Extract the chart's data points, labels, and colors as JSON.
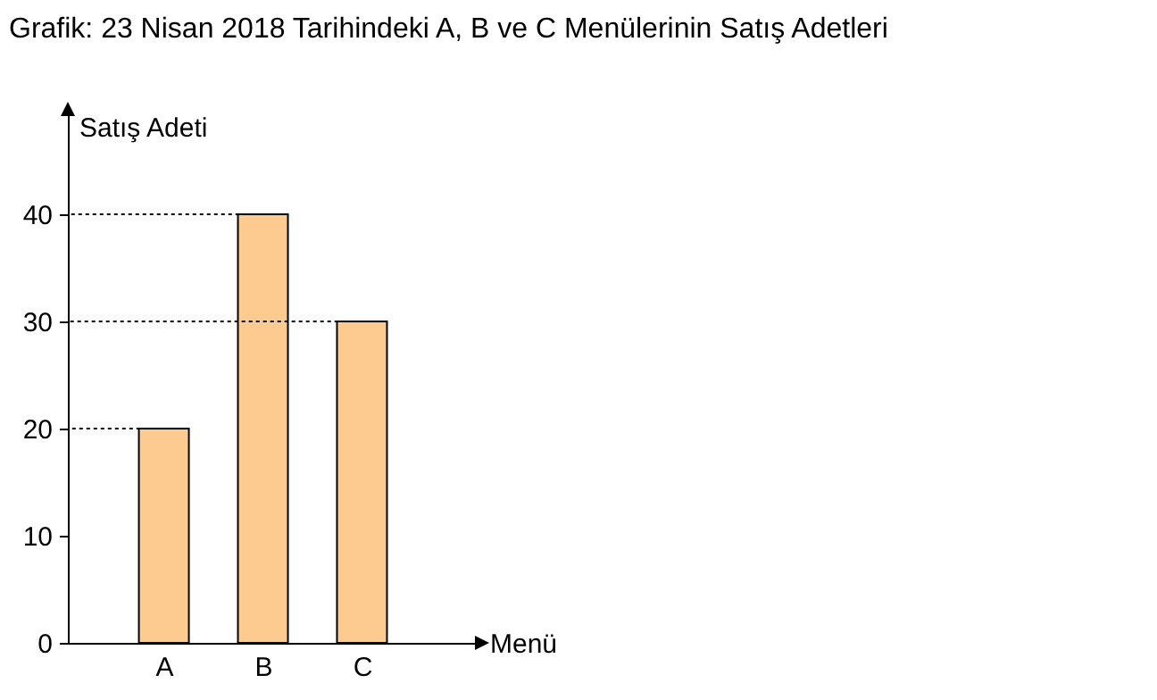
{
  "chart_data": {
    "type": "bar",
    "title": "Grafik: 23 Nisan 2018 Tarihindeki A, B ve C Menülerinin Satış Adetleri",
    "xlabel": "Menü",
    "ylabel": "Satış Adeti",
    "categories": [
      "A",
      "B",
      "C"
    ],
    "values": [
      20,
      40,
      30
    ],
    "color": "#fdca90",
    "ylim": [
      0,
      49.5
    ],
    "yticks": [
      0,
      10,
      20,
      30,
      40
    ],
    "ref_lines": [
      {
        "axis": "y",
        "value": 20,
        "line_style": "dotted"
      },
      {
        "axis": "y",
        "value": 30,
        "line_style": "dotted"
      },
      {
        "axis": "y",
        "value": 40,
        "line_style": "dotted"
      }
    ]
  }
}
